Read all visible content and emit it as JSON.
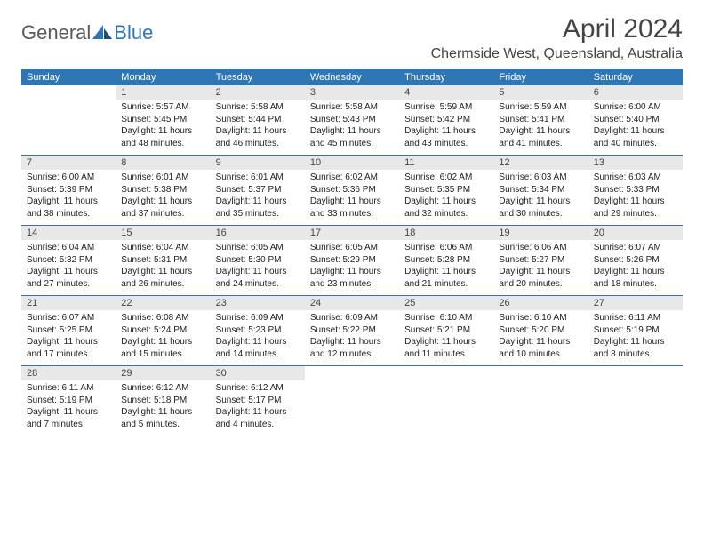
{
  "logo": {
    "part1": "General",
    "part2": "Blue"
  },
  "title": "April 2024",
  "location": "Chermside West, Queensland, Australia",
  "colors": {
    "header_bg": "#2f76b5",
    "header_text": "#ffffff",
    "daynum_bg": "#e8e8e8",
    "row_border": "#2f76b5",
    "body_bg": "#ffffff",
    "logo_gray": "#5a5a5a",
    "logo_blue": "#2f76b5"
  },
  "day_headers": [
    "Sunday",
    "Monday",
    "Tuesday",
    "Wednesday",
    "Thursday",
    "Friday",
    "Saturday"
  ],
  "weeks": [
    [
      null,
      {
        "n": "1",
        "sr": "5:57 AM",
        "ss": "5:45 PM",
        "dl": "11 hours and 48 minutes."
      },
      {
        "n": "2",
        "sr": "5:58 AM",
        "ss": "5:44 PM",
        "dl": "11 hours and 46 minutes."
      },
      {
        "n": "3",
        "sr": "5:58 AM",
        "ss": "5:43 PM",
        "dl": "11 hours and 45 minutes."
      },
      {
        "n": "4",
        "sr": "5:59 AM",
        "ss": "5:42 PM",
        "dl": "11 hours and 43 minutes."
      },
      {
        "n": "5",
        "sr": "5:59 AM",
        "ss": "5:41 PM",
        "dl": "11 hours and 41 minutes."
      },
      {
        "n": "6",
        "sr": "6:00 AM",
        "ss": "5:40 PM",
        "dl": "11 hours and 40 minutes."
      }
    ],
    [
      {
        "n": "7",
        "sr": "6:00 AM",
        "ss": "5:39 PM",
        "dl": "11 hours and 38 minutes."
      },
      {
        "n": "8",
        "sr": "6:01 AM",
        "ss": "5:38 PM",
        "dl": "11 hours and 37 minutes."
      },
      {
        "n": "9",
        "sr": "6:01 AM",
        "ss": "5:37 PM",
        "dl": "11 hours and 35 minutes."
      },
      {
        "n": "10",
        "sr": "6:02 AM",
        "ss": "5:36 PM",
        "dl": "11 hours and 33 minutes."
      },
      {
        "n": "11",
        "sr": "6:02 AM",
        "ss": "5:35 PM",
        "dl": "11 hours and 32 minutes."
      },
      {
        "n": "12",
        "sr": "6:03 AM",
        "ss": "5:34 PM",
        "dl": "11 hours and 30 minutes."
      },
      {
        "n": "13",
        "sr": "6:03 AM",
        "ss": "5:33 PM",
        "dl": "11 hours and 29 minutes."
      }
    ],
    [
      {
        "n": "14",
        "sr": "6:04 AM",
        "ss": "5:32 PM",
        "dl": "11 hours and 27 minutes."
      },
      {
        "n": "15",
        "sr": "6:04 AM",
        "ss": "5:31 PM",
        "dl": "11 hours and 26 minutes."
      },
      {
        "n": "16",
        "sr": "6:05 AM",
        "ss": "5:30 PM",
        "dl": "11 hours and 24 minutes."
      },
      {
        "n": "17",
        "sr": "6:05 AM",
        "ss": "5:29 PM",
        "dl": "11 hours and 23 minutes."
      },
      {
        "n": "18",
        "sr": "6:06 AM",
        "ss": "5:28 PM",
        "dl": "11 hours and 21 minutes."
      },
      {
        "n": "19",
        "sr": "6:06 AM",
        "ss": "5:27 PM",
        "dl": "11 hours and 20 minutes."
      },
      {
        "n": "20",
        "sr": "6:07 AM",
        "ss": "5:26 PM",
        "dl": "11 hours and 18 minutes."
      }
    ],
    [
      {
        "n": "21",
        "sr": "6:07 AM",
        "ss": "5:25 PM",
        "dl": "11 hours and 17 minutes."
      },
      {
        "n": "22",
        "sr": "6:08 AM",
        "ss": "5:24 PM",
        "dl": "11 hours and 15 minutes."
      },
      {
        "n": "23",
        "sr": "6:09 AM",
        "ss": "5:23 PM",
        "dl": "11 hours and 14 minutes."
      },
      {
        "n": "24",
        "sr": "6:09 AM",
        "ss": "5:22 PM",
        "dl": "11 hours and 12 minutes."
      },
      {
        "n": "25",
        "sr": "6:10 AM",
        "ss": "5:21 PM",
        "dl": "11 hours and 11 minutes."
      },
      {
        "n": "26",
        "sr": "6:10 AM",
        "ss": "5:20 PM",
        "dl": "11 hours and 10 minutes."
      },
      {
        "n": "27",
        "sr": "6:11 AM",
        "ss": "5:19 PM",
        "dl": "11 hours and 8 minutes."
      }
    ],
    [
      {
        "n": "28",
        "sr": "6:11 AM",
        "ss": "5:19 PM",
        "dl": "11 hours and 7 minutes."
      },
      {
        "n": "29",
        "sr": "6:12 AM",
        "ss": "5:18 PM",
        "dl": "11 hours and 5 minutes."
      },
      {
        "n": "30",
        "sr": "6:12 AM",
        "ss": "5:17 PM",
        "dl": "11 hours and 4 minutes."
      },
      null,
      null,
      null,
      null
    ]
  ],
  "labels": {
    "sunrise": "Sunrise:",
    "sunset": "Sunset:",
    "daylight": "Daylight:"
  }
}
